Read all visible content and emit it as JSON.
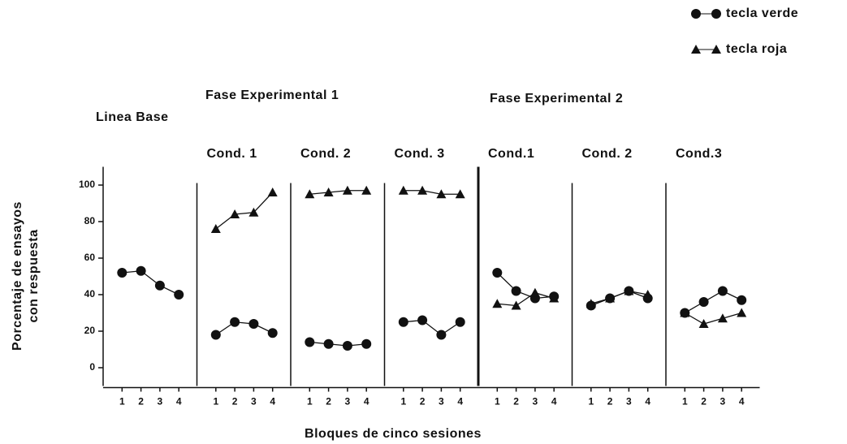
{
  "chart_data": {
    "type": "line",
    "y_label": [
      "Porcentaje de ensayos",
      "con respuesta"
    ],
    "x_label": "Bloques de cinco sesiones",
    "ylim": [
      -10,
      110
    ],
    "yticks": [
      0,
      20,
      40,
      60,
      80,
      100
    ],
    "phases": [
      "Linea Base",
      "Fase Experimental 1",
      "Fase Experimental 2"
    ],
    "legend": [
      {
        "name": "tecla verde",
        "marker": "circle",
        "color": "#111"
      },
      {
        "name": "tecla roja",
        "marker": "triangle",
        "color": "#111"
      }
    ],
    "panels": [
      {
        "title": null,
        "categories": [
          1,
          2,
          3,
          4
        ],
        "series": [
          {
            "legend": 0,
            "values": [
              52,
              53,
              45,
              40
            ]
          }
        ]
      },
      {
        "title": "Cond. 1",
        "categories": [
          1,
          2,
          3,
          4
        ],
        "series": [
          {
            "legend": 0,
            "values": [
              18,
              25,
              24,
              19
            ]
          },
          {
            "legend": 1,
            "values": [
              76,
              84,
              85,
              96
            ]
          }
        ]
      },
      {
        "title": "Cond. 2",
        "categories": [
          1,
          2,
          3,
          4
        ],
        "series": [
          {
            "legend": 0,
            "values": [
              14,
              13,
              12,
              13
            ]
          },
          {
            "legend": 1,
            "values": [
              95,
              96,
              97,
              97
            ]
          }
        ]
      },
      {
        "title": "Cond. 3",
        "categories": [
          1,
          2,
          3,
          4
        ],
        "series": [
          {
            "legend": 0,
            "values": [
              25,
              26,
              18,
              25
            ]
          },
          {
            "legend": 1,
            "values": [
              97,
              97,
              95,
              95
            ]
          }
        ]
      },
      {
        "title": "Cond.1",
        "categories": [
          1,
          2,
          3,
          4
        ],
        "series": [
          {
            "legend": 0,
            "values": [
              52,
              42,
              38,
              39
            ]
          },
          {
            "legend": 1,
            "values": [
              35,
              34,
              41,
              38
            ]
          }
        ]
      },
      {
        "title": "Cond. 2",
        "categories": [
          1,
          2,
          3,
          4
        ],
        "series": [
          {
            "legend": 0,
            "values": [
              34,
              38,
              42,
              38
            ]
          },
          {
            "legend": 1,
            "values": [
              35,
              38,
              42,
              40
            ]
          }
        ]
      },
      {
        "title": "Cond.3",
        "categories": [
          1,
          2,
          3,
          4
        ],
        "series": [
          {
            "legend": 0,
            "values": [
              30,
              36,
              42,
              37
            ]
          },
          {
            "legend": 1,
            "values": [
              30,
              24,
              27,
              30
            ]
          }
        ]
      }
    ]
  }
}
